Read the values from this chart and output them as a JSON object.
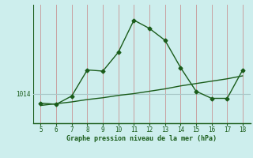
{
  "xlabel": "Graphe pression niveau de la mer (hPa)",
  "x": [
    5,
    6,
    7,
    8,
    9,
    10,
    11,
    12,
    13,
    14,
    15,
    16,
    17,
    18
  ],
  "y_main": [
    1013.2,
    1013.1,
    1013.8,
    1016.0,
    1015.9,
    1017.5,
    1020.2,
    1019.5,
    1018.5,
    1016.2,
    1014.2,
    1013.6,
    1013.6,
    1016.0
  ],
  "y_trend": [
    1013.0,
    1013.15,
    1013.3,
    1013.5,
    1013.65,
    1013.85,
    1014.0,
    1014.2,
    1014.4,
    1014.65,
    1014.85,
    1015.05,
    1015.25,
    1015.5
  ],
  "ytick_value": 1014,
  "ylim_min": 1011.5,
  "ylim_max": 1021.5,
  "line_color": "#1a5c1a",
  "bg_color": "#cdeeed",
  "vgrid_color": "#c8a0a0",
  "hgrid_color": "#a8c8c8",
  "xlabel_color": "#1a5c1a",
  "marker": "D",
  "marker_size": 2.5,
  "linewidth": 1.0,
  "tick_fontsize": 5.5,
  "xlabel_fontsize": 6.0
}
